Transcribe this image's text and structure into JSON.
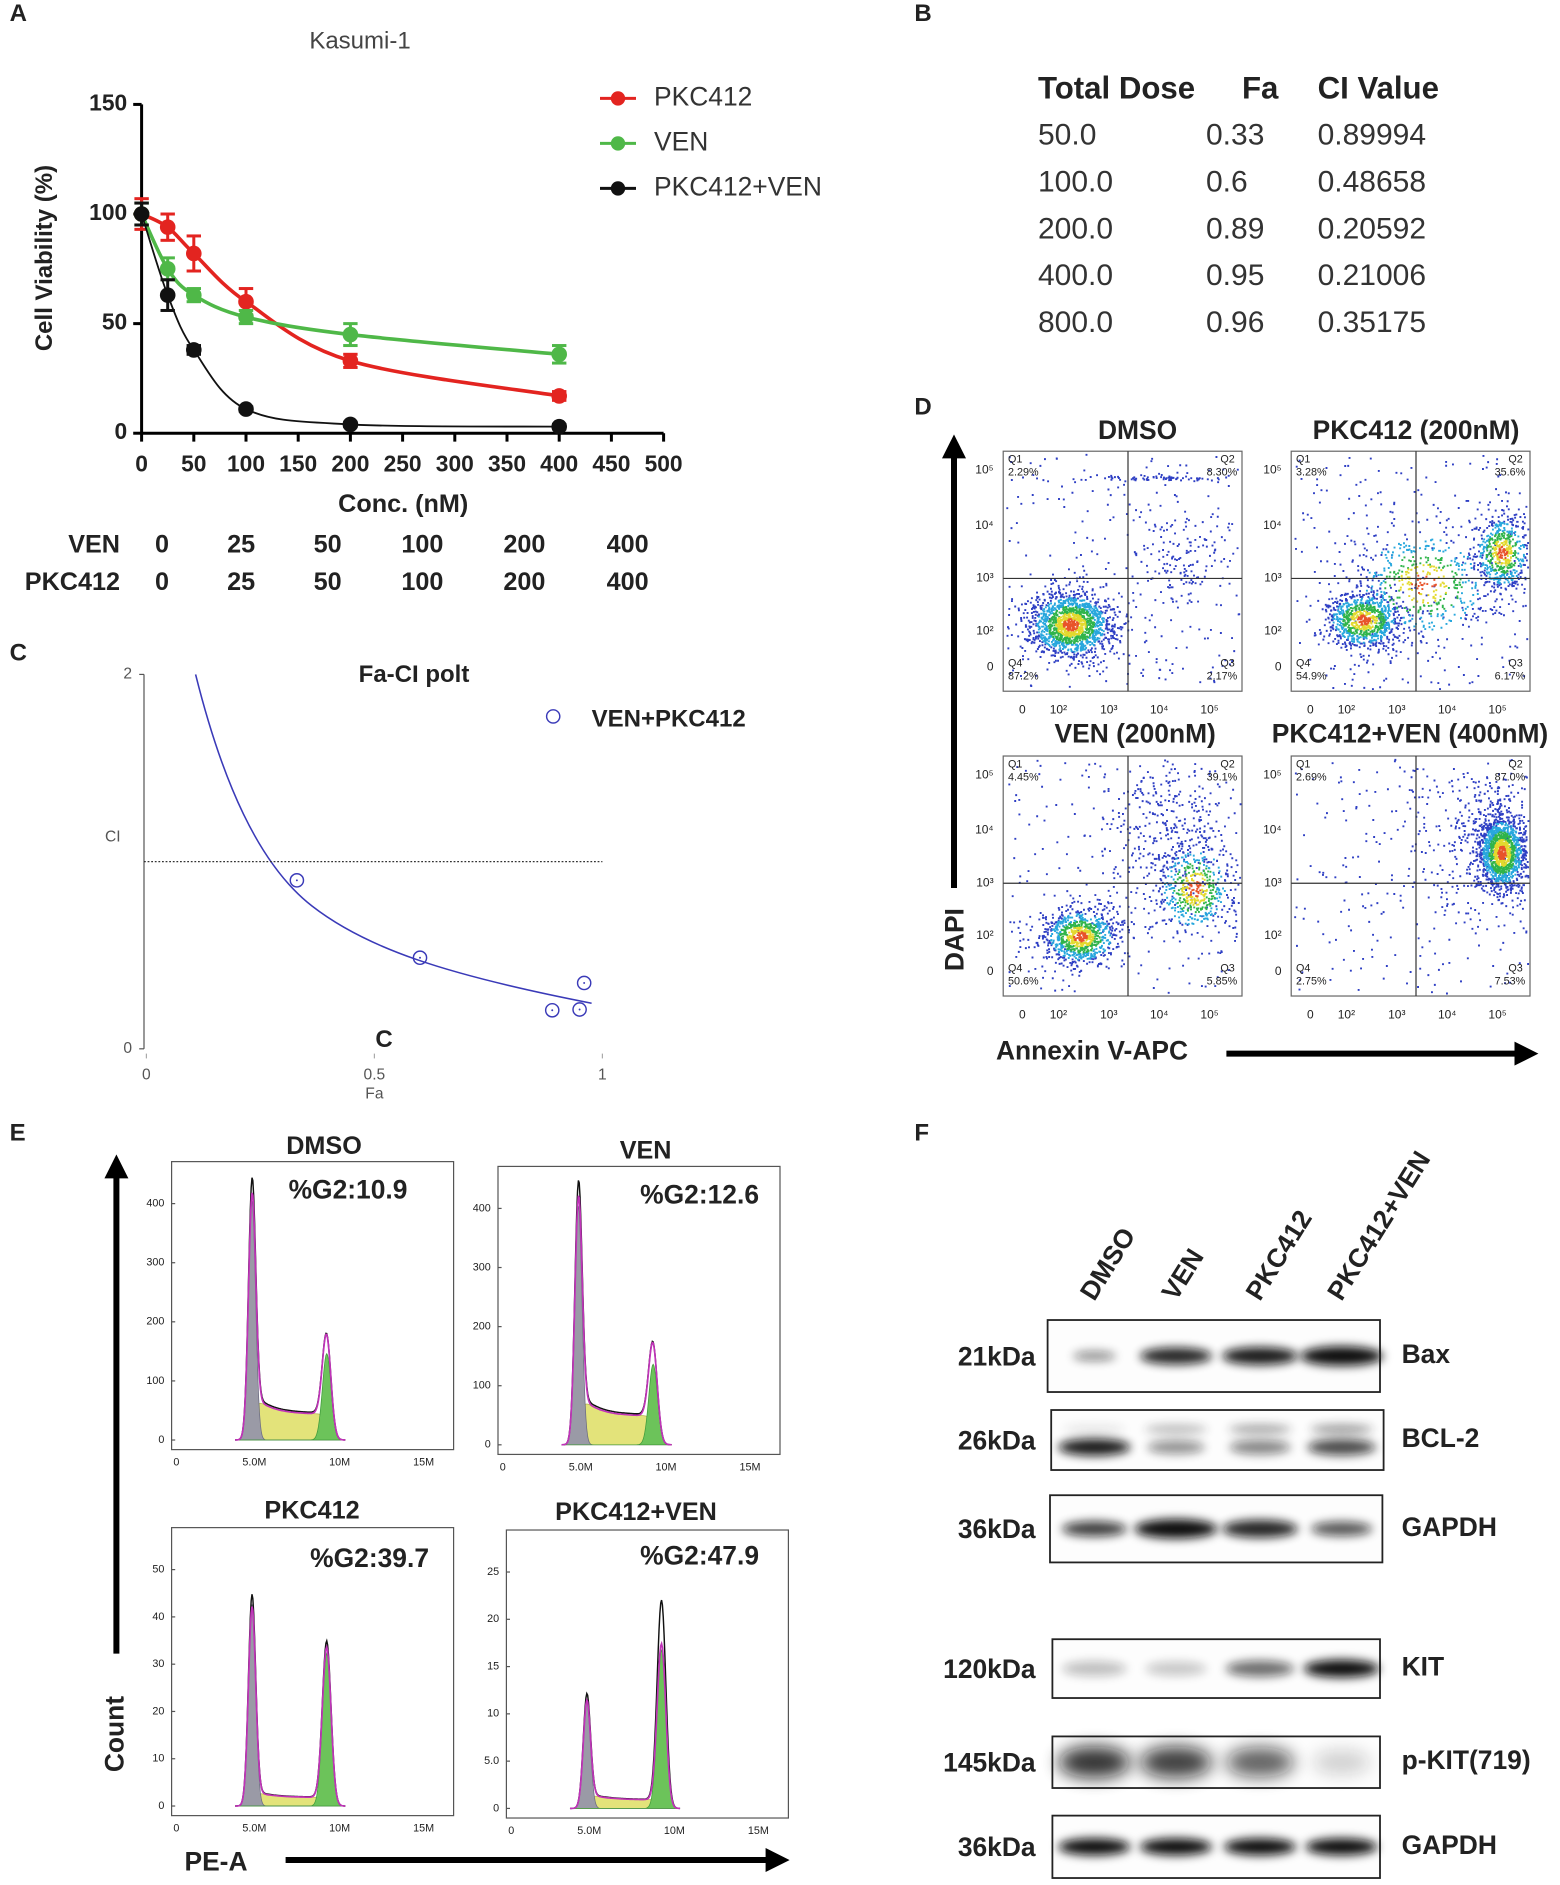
{
  "panel_labels": [
    "A",
    "B",
    "C",
    "D",
    "E",
    "F"
  ],
  "chart_data": [
    {
      "type": "line",
      "title": "Kasumi-1",
      "x_label": "Conc. (nM)",
      "y_label": "Cell Viability (%)",
      "x": [
        0,
        25,
        50,
        100,
        200,
        400
      ],
      "series": [
        {
          "name": "PKC412",
          "color": "#e32420",
          "values": [
            100,
            94,
            82,
            60,
            33,
            17
          ],
          "errors": [
            7,
            6,
            8,
            6,
            3,
            2
          ]
        },
        {
          "name": "VEN",
          "color": "#4fb848",
          "values": [
            100,
            75,
            63,
            53,
            45,
            36
          ],
          "errors": [
            5,
            5,
            3,
            3,
            5,
            4
          ]
        },
        {
          "name": "PKC412+VEN",
          "color": "#111111",
          "values": [
            100,
            63,
            38,
            11,
            4,
            3
          ],
          "errors": [
            5,
            7,
            2,
            1,
            1,
            1
          ]
        }
      ],
      "xlim": [
        0,
        500
      ],
      "xticks": [
        0,
        50,
        100,
        150,
        200,
        250,
        300,
        350,
        400,
        450,
        500
      ],
      "ylim": [
        0,
        150
      ],
      "yticks": [
        0,
        50,
        100,
        150
      ],
      "dose_table": {
        "rows": [
          {
            "label": "VEN",
            "values": [
              0,
              25,
              50,
              100,
              200,
              400
            ]
          },
          {
            "label": "PKC412",
            "values": [
              0,
              25,
              50,
              100,
              200,
              400
            ]
          }
        ]
      }
    },
    {
      "type": "scatter",
      "title": "Fa-CI polt",
      "x_label": "Fa",
      "y_label": "CI",
      "annotation": "C",
      "series": [
        {
          "name": "VEN+PKC412",
          "color": "#3a3ab8",
          "x": [
            0.33,
            0.6,
            0.89,
            0.95,
            0.96
          ],
          "values": [
            0.89994,
            0.48658,
            0.20592,
            0.21006,
            0.35175
          ]
        }
      ],
      "xlim": [
        0,
        1
      ],
      "xticks": [
        0,
        0.5,
        1
      ],
      "ylim": [
        0,
        2
      ],
      "yticks": [
        0,
        2
      ],
      "reference_line": 1
    }
  ],
  "table_b": {
    "header": [
      "Total Dose",
      "Fa",
      "CI Value"
    ],
    "rows": [
      [
        "50.0",
        "0.33",
        "0.89994"
      ],
      [
        "100.0",
        "0.6",
        "0.48658"
      ],
      [
        "200.0",
        "0.89",
        "0.20592"
      ],
      [
        "400.0",
        "0.95",
        "0.21006"
      ],
      [
        "800.0",
        "0.96",
        "0.35175"
      ]
    ]
  },
  "flow_d": {
    "y_label": "DAPI",
    "x_label": "Annexin V-APC",
    "quadrant_names": [
      "Q1",
      "Q2",
      "Q3",
      "Q4"
    ],
    "axis_ticks": [
      "0",
      "10²",
      "10³",
      "10⁴",
      "10⁵"
    ],
    "plots": [
      {
        "title": "DMSO",
        "percents": [
          "2.29%",
          "8.30%",
          "2.17%",
          "87.2%"
        ]
      },
      {
        "title": "PKC412 (200nM)",
        "percents": [
          "3.28%",
          "35.6%",
          "6.17%",
          "54.9%"
        ]
      },
      {
        "title": "VEN (200nM)",
        "percents": [
          "4.45%",
          "39.1%",
          "5.85%",
          "50.6%"
        ]
      },
      {
        "title": "PKC412+VEN (400nM)",
        "percents": [
          "2.69%",
          "87.0%",
          "7.53%",
          "2.75%"
        ]
      }
    ]
  },
  "cycle_e": {
    "y_label": "Count",
    "x_label": "PE-A",
    "xticks": [
      "0",
      "5.0M",
      "10M",
      "15M"
    ],
    "plots": [
      {
        "title": "DMSO",
        "g2": "%G2:10.9",
        "yticks": [
          0,
          100,
          200,
          300,
          400
        ]
      },
      {
        "title": "VEN",
        "g2": "%G2:12.6",
        "yticks": [
          0,
          100,
          200,
          300,
          400
        ]
      },
      {
        "title": "PKC412",
        "g2": "%G2:39.7",
        "yticks": [
          0,
          10,
          20,
          30,
          40,
          50
        ]
      },
      {
        "title": "PKC412+VEN",
        "g2": "%G2:47.9",
        "yticks": [
          0,
          {
            "value": 5,
            "label": "5.0"
          },
          10,
          15,
          20,
          25
        ]
      }
    ]
  },
  "blot_f": {
    "lanes": [
      "DMSO",
      "VEN",
      "PKC412",
      "PKC412+VEN"
    ],
    "rows": [
      {
        "size": "21kDa",
        "protein": "Bax"
      },
      {
        "size": "26kDa",
        "protein": "BCL-2"
      },
      {
        "size": "36kDa",
        "protein": "GAPDH"
      },
      {
        "size": "120kDa",
        "protein": "KIT"
      },
      {
        "size": "145kDa",
        "protein": "p-KIT(719)"
      },
      {
        "size": "36kDa",
        "protein": "GAPDH"
      }
    ]
  }
}
